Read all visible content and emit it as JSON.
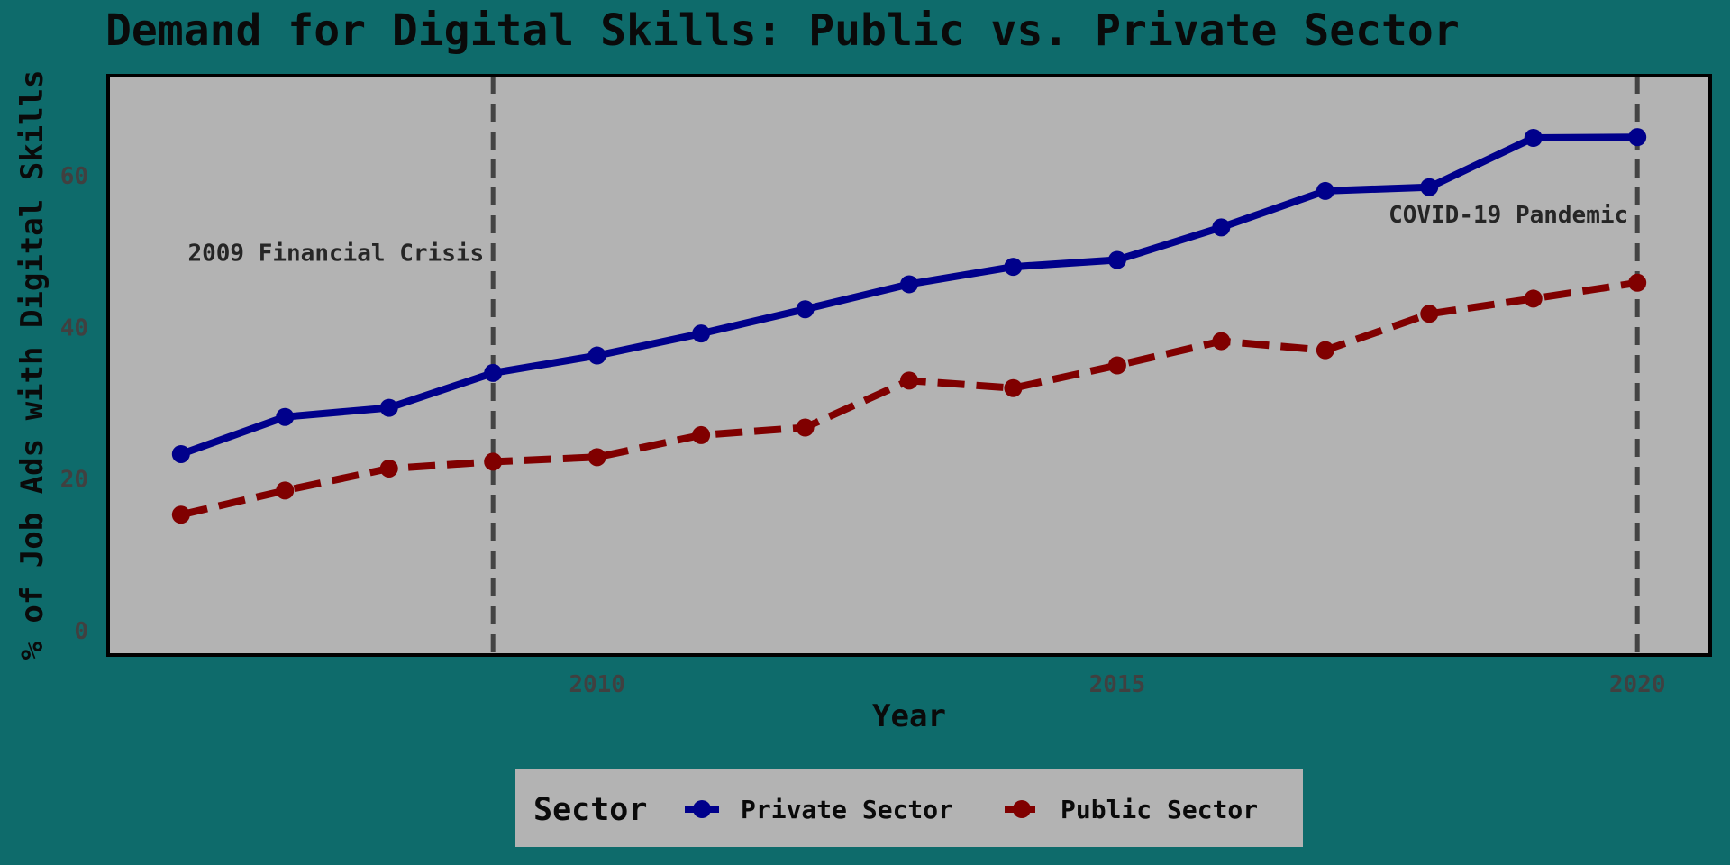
{
  "chart_data": {
    "type": "line",
    "title": "Demand for Digital Skills: Public vs. Private Sector",
    "xlabel": "Year",
    "ylabel": "% of Job Ads with Digital Skills",
    "x": [
      2006,
      2007,
      2008,
      2009,
      2010,
      2011,
      2012,
      2013,
      2014,
      2015,
      2016,
      2017,
      2018,
      2019,
      2020
    ],
    "xlim": [
      2005.3,
      2020.7
    ],
    "ylim": [
      -3.2,
      73.2
    ],
    "x_ticks": [
      2010,
      2015,
      2020
    ],
    "y_ticks": [
      0,
      20,
      40,
      60
    ],
    "grid": false,
    "series": [
      {
        "name": "Private Sector",
        "color": "#00008b",
        "line_style": "solid",
        "values": [
          23.3,
          28.2,
          29.4,
          34.0,
          36.3,
          39.2,
          42.4,
          45.7,
          48.0,
          48.9,
          53.2,
          58.0,
          58.5,
          65.0,
          65.1
        ]
      },
      {
        "name": "Public Sector",
        "color": "#800000",
        "line_style": "dashed",
        "values": [
          15.3,
          18.5,
          21.4,
          22.3,
          22.9,
          25.8,
          26.8,
          33.0,
          32.0,
          35.0,
          38.2,
          37.0,
          41.8,
          43.8,
          45.9
        ]
      }
    ],
    "annotations": [
      {
        "x": 2009,
        "label": "2009 Financial Crisis",
        "label_y": 50,
        "align": "end"
      },
      {
        "x": 2020,
        "label": "COVID-19 Pandemic",
        "label_y": 55,
        "align": "end"
      }
    ],
    "legend": {
      "title": "Sector",
      "position": "bottom"
    },
    "colors": {
      "background": "#0e6b6b",
      "panel": "#b3b3b3",
      "panel_border": "#000000",
      "annotation_line": "#444444",
      "legend_box": "#b3b3b3"
    }
  }
}
